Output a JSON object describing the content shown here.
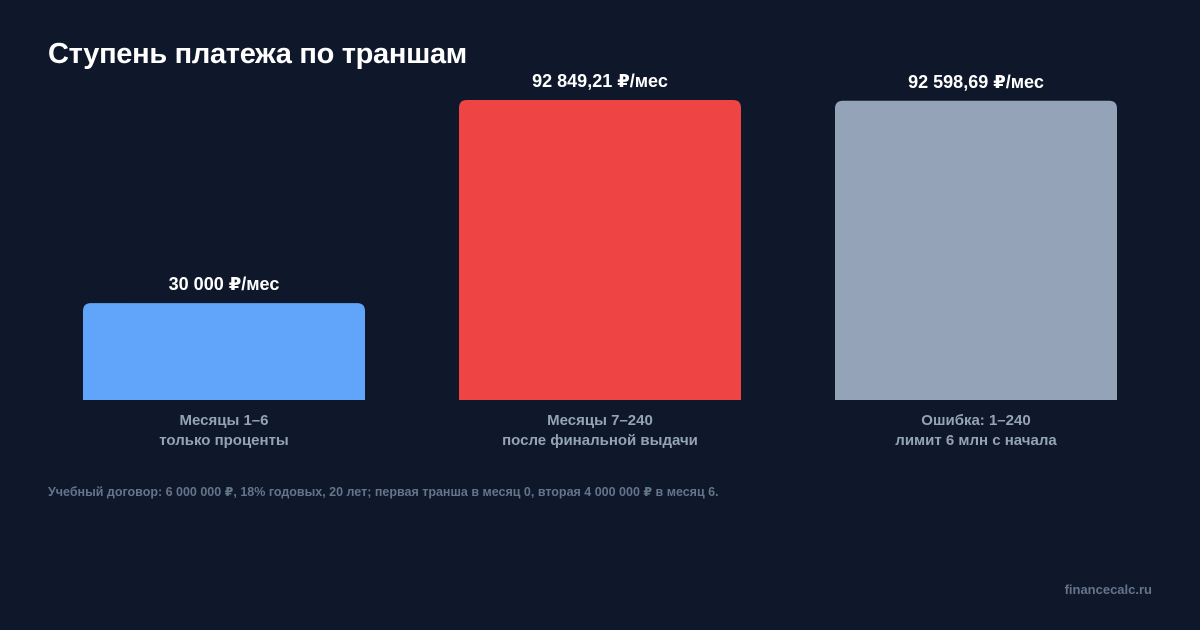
{
  "chart_data": {
    "type": "bar",
    "title": "Ступень платежа по траншам",
    "categories": [
      [
        "Месяцы 1–6",
        "только проценты"
      ],
      [
        "Месяцы 7–240",
        "после финальной выдачи"
      ],
      [
        "Ошибка: 1–240",
        "лимит 6 млн с начала"
      ]
    ],
    "values": [
      30000,
      92849.21,
      92598.69
    ],
    "value_labels": [
      "30 000 ₽/мес",
      "92 849,21 ₽/мес",
      "92 598,69 ₽/мес"
    ],
    "colors": [
      "#60a5fa",
      "#ef4444",
      "#94a3b8"
    ],
    "ylim": [
      0,
      92849.21
    ],
    "grid": false,
    "legend": "none"
  },
  "footnote": "Учебный договор: 6 000 000 ₽, 18% годовых, 20 лет; первая транша в месяц 0, вторая 4 000 000 ₽ в месяц 6.",
  "brand": "financecalc.ru"
}
